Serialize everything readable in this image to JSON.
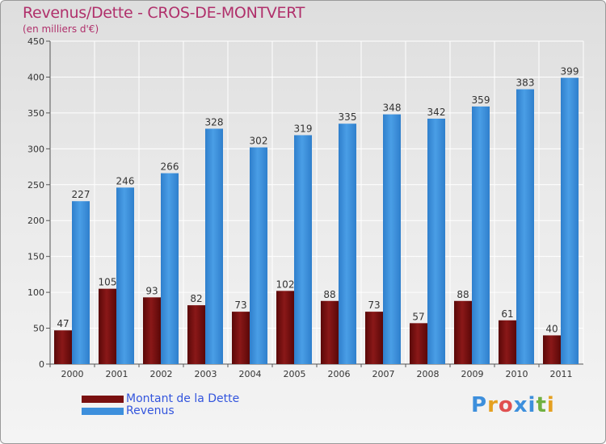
{
  "header": {
    "title": "Revenus/Dette - CROS-DE-MONTVERT",
    "subtitle": "(en milliers d'€)"
  },
  "chart_data": {
    "type": "bar",
    "categories": [
      "2000",
      "2001",
      "2002",
      "2003",
      "2004",
      "2005",
      "2006",
      "2007",
      "2008",
      "2009",
      "2010",
      "2011"
    ],
    "series": [
      {
        "name": "Montant de la Dette",
        "color": "#7a1010",
        "values": [
          47,
          105,
          93,
          82,
          73,
          102,
          88,
          73,
          57,
          88,
          61,
          40
        ]
      },
      {
        "name": "Revenus",
        "color": "#3d8fdc",
        "values": [
          227,
          246,
          266,
          328,
          302,
          319,
          335,
          348,
          342,
          359,
          383,
          399
        ]
      }
    ],
    "ylim": [
      0,
      450
    ],
    "yticks": [
      0,
      50,
      100,
      150,
      200,
      250,
      300,
      350,
      400,
      450
    ],
    "grid": true,
    "legend_position": "bottom-left"
  },
  "legend": {
    "items": [
      {
        "label": "Montant de la Dette",
        "color": "#7a1010"
      },
      {
        "label": "Revenus",
        "color": "#3d8fdc"
      }
    ]
  },
  "logo": {
    "text": "Proxiti",
    "letter_colors": [
      "#3d8fdc",
      "#e5a020",
      "#e05050",
      "#3d8fdc",
      "#3d8fdc",
      "#70b040",
      "#e5a020"
    ]
  }
}
